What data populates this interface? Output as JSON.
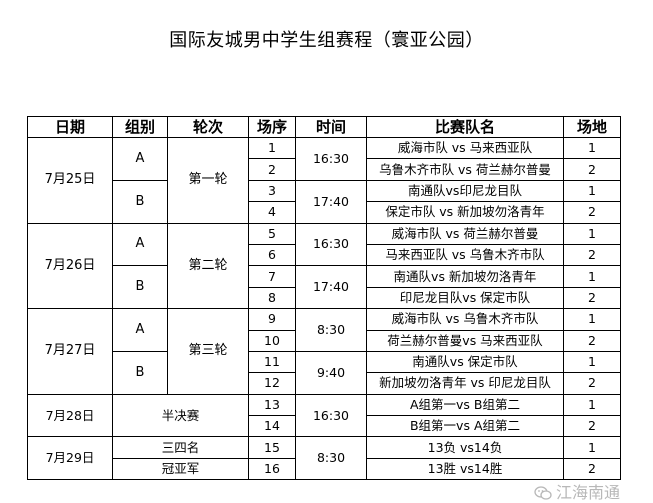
{
  "title": "国际友城男中学生组赛程（寰亚公园）",
  "headers": [
    "日期",
    "组别",
    "轮次",
    "场序",
    "时间",
    "比赛队名",
    "场地"
  ],
  "days": [
    {
      "date": "7月25日",
      "round": "第一轮",
      "groups": [
        {
          "group": "A",
          "time": "16:30",
          "matches": [
            {
              "no": "1",
              "teams": "威海市队 vs 马来西亚队",
              "venue": "1"
            },
            {
              "no": "2",
              "teams": "乌鲁木齐市队 vs 荷兰赫尔普曼",
              "venue": "2"
            }
          ]
        },
        {
          "group": "B",
          "time": "17:40",
          "matches": [
            {
              "no": "3",
              "teams": "南通队vs印尼龙目队",
              "venue": "1"
            },
            {
              "no": "4",
              "teams": "保定市队 vs 新加坡勿洛青年",
              "venue": "2"
            }
          ]
        }
      ]
    },
    {
      "date": "7月26日",
      "round": "第二轮",
      "groups": [
        {
          "group": "A",
          "time": "16:30",
          "matches": [
            {
              "no": "5",
              "teams": "威海市队 vs 荷兰赫尔普曼",
              "venue": "1"
            },
            {
              "no": "6",
              "teams": "马来西亚队 vs 乌鲁木齐市队",
              "venue": "2"
            }
          ]
        },
        {
          "group": "B",
          "time": "17:40",
          "matches": [
            {
              "no": "7",
              "teams": "南通队vs 新加坡勿洛青年",
              "venue": "1"
            },
            {
              "no": "8",
              "teams": "印尼龙目队vs 保定市队",
              "venue": "2"
            }
          ]
        }
      ]
    },
    {
      "date": "7月27日",
      "round": "第三轮",
      "groups": [
        {
          "group": "A",
          "time": "8:30",
          "matches": [
            {
              "no": "9",
              "teams": "威海市队 vs 乌鲁木齐市队",
              "venue": "1"
            },
            {
              "no": "10",
              "teams": "荷兰赫尔普曼vs 马来西亚队",
              "venue": "2"
            }
          ]
        },
        {
          "group": "B",
          "time": "9:40",
          "matches": [
            {
              "no": "11",
              "teams": "南通队vs 保定市队",
              "venue": "1"
            },
            {
              "no": "12",
              "teams": "新加坡勿洛青年 vs 印尼龙目队",
              "venue": "2"
            }
          ]
        }
      ]
    }
  ],
  "semifinal": {
    "date": "7月28日",
    "stage": "半决赛",
    "time": "16:30",
    "matches": [
      {
        "no": "13",
        "teams": "A组第一vs B组第二",
        "venue": "1"
      },
      {
        "no": "14",
        "teams": "B组第一vs A组第二",
        "venue": "2"
      }
    ]
  },
  "final": {
    "date": "7月29日",
    "time": "8:30",
    "matches": [
      {
        "stage": "三四名",
        "no": "15",
        "teams": "13负 vs14负",
        "venue": "1"
      },
      {
        "stage": "冠亚军",
        "no": "16",
        "teams": "13胜 vs14胜",
        "venue": "2"
      }
    ]
  },
  "watermark": {
    "text": "江海南通",
    "icon": "wechat-icon"
  }
}
